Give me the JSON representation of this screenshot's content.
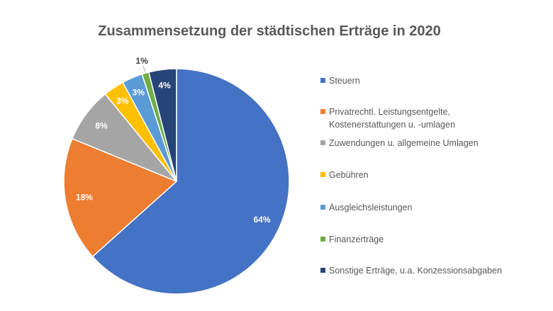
{
  "chart_data": {
    "type": "pie",
    "title": "Zusammensetzung der städtischen Erträge in 2020",
    "legend_position": "right",
    "slices": [
      {
        "name": "Steuern",
        "value": 64,
        "label": "64%",
        "color": "#4472C4"
      },
      {
        "name": "Privatrechtl. Leistungsentgelte,\nKostenerstattungen u. -umlagen",
        "value": 18,
        "label": "18%",
        "color": "#ED7D31"
      },
      {
        "name": "Zuwendungen u. allgemeine Umlagen",
        "value": 8,
        "label": "8%",
        "color": "#A5A5A5"
      },
      {
        "name": "Gebühren",
        "value": 3,
        "label": "3%",
        "color": "#FFC000"
      },
      {
        "name": "Ausgleichsleistungen",
        "value": 3,
        "label": "3%",
        "color": "#5B9BD5"
      },
      {
        "name": "Finanzerträge",
        "value": 1,
        "label": "1%",
        "color": "#70AD47"
      },
      {
        "name": "Sonstige Erträge, u.a. Konzessionsabgaben",
        "value": 4,
        "label": "4%",
        "color": "#264478"
      }
    ]
  }
}
